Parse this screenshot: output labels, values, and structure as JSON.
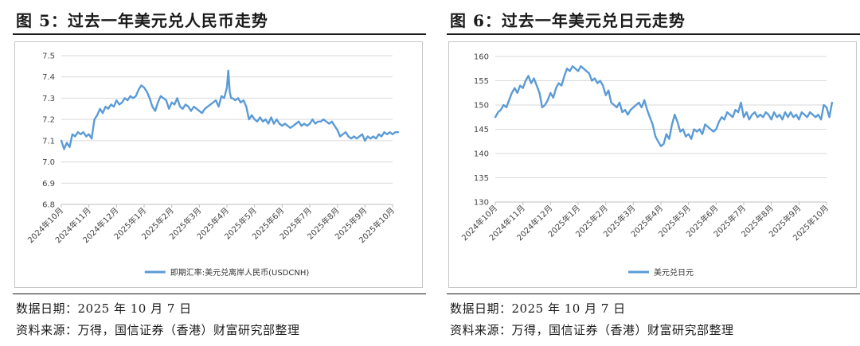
{
  "figures": [
    {
      "title": "图 5：过去一年美元兑人民币走势",
      "notes": [
        "数据日期：2025 年 10 月 7 日",
        "资料来源：万得，国信证券（香港）财富研究部整理"
      ]
    },
    {
      "title": "图 6：过去一年美元兑日元走势",
      "notes": [
        "数据日期：2025 年 10 月 7 日",
        "资料来源：万得，国信证券（香港）财富研究部整理"
      ]
    }
  ],
  "colors": {
    "line": "#5b9bd5",
    "grid": "#d9d9d9",
    "axis": "#bfbfbf"
  },
  "chart_data": [
    {
      "type": "line",
      "title": "",
      "xlabel": "",
      "ylabel": "",
      "ylim": [
        6.8,
        7.5
      ],
      "yticks": [
        "7.5",
        "7.4",
        "7.3",
        "7.2",
        "7.1",
        "7.0",
        "6.9",
        "6.8"
      ],
      "grid": true,
      "legend": "bottom-center",
      "xticks": [
        "2024年10月",
        "2024年11月",
        "2024年12月",
        "2025年1月",
        "2025年2月",
        "2025年3月",
        "2025年4月",
        "2025年5月",
        "2025年6月",
        "2025年7月",
        "2025年8月",
        "2025年9月",
        "2025年10月"
      ],
      "series": [
        {
          "name": "即期汇率:美元兑离岸人民币(USDCNH)",
          "x": [
            0,
            0.1,
            0.2,
            0.3,
            0.4,
            0.5,
            0.6,
            0.7,
            0.8,
            0.9,
            1.0,
            1.1,
            1.2,
            1.3,
            1.4,
            1.5,
            1.6,
            1.7,
            1.8,
            1.9,
            2.0,
            2.1,
            2.2,
            2.3,
            2.4,
            2.5,
            2.6,
            2.7,
            2.8,
            2.9,
            3.0,
            3.1,
            3.2,
            3.3,
            3.4,
            3.5,
            3.6,
            3.7,
            3.8,
            3.9,
            4.0,
            4.1,
            4.2,
            4.3,
            4.4,
            4.5,
            4.6,
            4.7,
            4.8,
            4.9,
            5.0,
            5.1,
            5.2,
            5.3,
            5.4,
            5.5,
            5.6,
            5.7,
            5.8,
            5.9,
            6.0,
            6.05,
            6.1,
            6.15,
            6.2,
            6.3,
            6.4,
            6.5,
            6.6,
            6.7,
            6.8,
            6.9,
            7.0,
            7.1,
            7.2,
            7.3,
            7.4,
            7.5,
            7.6,
            7.7,
            7.8,
            7.9,
            8.0,
            8.1,
            8.2,
            8.3,
            8.4,
            8.5,
            8.6,
            8.7,
            8.8,
            8.9,
            9.0,
            9.1,
            9.2,
            9.3,
            9.4,
            9.5,
            9.6,
            9.7,
            9.8,
            9.9,
            10.0,
            10.1,
            10.2,
            10.3,
            10.4,
            10.5,
            10.6,
            10.7,
            10.8,
            10.9,
            11.0,
            11.1,
            11.2,
            11.3,
            11.4,
            11.5,
            11.6,
            11.7,
            11.8,
            11.9,
            12.0,
            12.1,
            12.2
          ],
          "values": [
            7.1,
            7.06,
            7.09,
            7.07,
            7.13,
            7.12,
            7.14,
            7.13,
            7.14,
            7.12,
            7.13,
            7.11,
            7.2,
            7.22,
            7.25,
            7.23,
            7.26,
            7.25,
            7.27,
            7.26,
            7.29,
            7.27,
            7.28,
            7.3,
            7.29,
            7.31,
            7.3,
            7.31,
            7.34,
            7.36,
            7.35,
            7.33,
            7.3,
            7.26,
            7.24,
            7.28,
            7.31,
            7.3,
            7.29,
            7.25,
            7.28,
            7.27,
            7.3,
            7.26,
            7.25,
            7.27,
            7.26,
            7.24,
            7.26,
            7.25,
            7.24,
            7.23,
            7.25,
            7.26,
            7.27,
            7.28,
            7.29,
            7.26,
            7.31,
            7.3,
            7.35,
            7.43,
            7.33,
            7.3,
            7.3,
            7.29,
            7.3,
            7.28,
            7.29,
            7.26,
            7.2,
            7.22,
            7.2,
            7.19,
            7.21,
            7.19,
            7.2,
            7.18,
            7.21,
            7.18,
            7.2,
            7.18,
            7.17,
            7.18,
            7.17,
            7.16,
            7.17,
            7.18,
            7.19,
            7.17,
            7.18,
            7.17,
            7.18,
            7.2,
            7.18,
            7.19,
            7.19,
            7.2,
            7.19,
            7.18,
            7.19,
            7.17,
            7.15,
            7.12,
            7.13,
            7.14,
            7.12,
            7.11,
            7.12,
            7.11,
            7.12,
            7.13,
            7.1,
            7.12,
            7.11,
            7.12,
            7.11,
            7.13,
            7.12,
            7.14,
            7.13,
            7.14,
            7.13,
            7.14,
            7.14
          ]
        }
      ]
    },
    {
      "type": "line",
      "title": "",
      "xlabel": "",
      "ylabel": "",
      "ylim": [
        130,
        160
      ],
      "yticks": [
        "160",
        "155",
        "150",
        "145",
        "140",
        "135",
        "130"
      ],
      "grid": true,
      "legend": "bottom-center",
      "xticks": [
        "2024年10月",
        "2024年11月",
        "2024年12月",
        "2025年1月",
        "2025年2月",
        "2025年3月",
        "2025年4月",
        "2025年5月",
        "2025年6月",
        "2025年7月",
        "2025年8月",
        "2025年9月",
        "2025年10月"
      ],
      "series": [
        {
          "name": "美元兑日元",
          "x": [
            0,
            0.1,
            0.2,
            0.3,
            0.4,
            0.5,
            0.6,
            0.7,
            0.8,
            0.9,
            1.0,
            1.1,
            1.2,
            1.3,
            1.4,
            1.5,
            1.6,
            1.7,
            1.8,
            1.9,
            2.0,
            2.1,
            2.2,
            2.3,
            2.4,
            2.5,
            2.6,
            2.7,
            2.8,
            2.9,
            3.0,
            3.1,
            3.2,
            3.3,
            3.4,
            3.5,
            3.6,
            3.7,
            3.8,
            3.9,
            4.0,
            4.1,
            4.2,
            4.3,
            4.4,
            4.5,
            4.6,
            4.7,
            4.8,
            4.9,
            5.0,
            5.1,
            5.2,
            5.3,
            5.4,
            5.5,
            5.6,
            5.7,
            5.8,
            5.9,
            6.0,
            6.1,
            6.2,
            6.3,
            6.4,
            6.5,
            6.6,
            6.7,
            6.8,
            6.9,
            7.0,
            7.1,
            7.2,
            7.3,
            7.4,
            7.5,
            7.6,
            7.7,
            7.8,
            7.9,
            8.0,
            8.1,
            8.2,
            8.3,
            8.4,
            8.5,
            8.6,
            8.7,
            8.8,
            8.9,
            9.0,
            9.1,
            9.2,
            9.3,
            9.4,
            9.5,
            9.6,
            9.7,
            9.8,
            9.9,
            10.0,
            10.1,
            10.2,
            10.3,
            10.4,
            10.5,
            10.6,
            10.7,
            10.8,
            10.9,
            11.0,
            11.1,
            11.2,
            11.3,
            11.4,
            11.5,
            11.6,
            11.7,
            11.8,
            11.9,
            12.0,
            12.1,
            12.2
          ],
          "values": [
            147.5,
            148.5,
            149,
            150,
            149.5,
            151,
            152.5,
            153.5,
            152.5,
            154,
            153.5,
            155,
            156,
            154.5,
            155.5,
            154,
            152.5,
            149.5,
            150,
            151,
            152.5,
            151.5,
            153.5,
            154.5,
            154,
            156,
            157.5,
            157,
            158,
            157.5,
            157,
            158,
            157.5,
            157,
            156.5,
            155,
            155.5,
            154.5,
            155,
            154,
            152,
            153,
            150.5,
            150,
            149.5,
            150.5,
            148.5,
            149,
            148,
            149,
            149.5,
            150,
            150.5,
            149.5,
            151,
            149,
            147.5,
            146,
            143.5,
            142.5,
            141.5,
            142,
            144,
            143,
            146,
            148,
            146.5,
            144.5,
            145,
            143.5,
            144,
            143,
            145,
            144.5,
            145,
            144,
            146,
            145.5,
            145,
            144.5,
            145,
            146.5,
            147.5,
            147,
            148.5,
            148,
            147.5,
            149,
            148.5,
            150.5,
            147.5,
            148.5,
            147,
            148,
            148.5,
            147.5,
            148,
            147.5,
            148.5,
            148,
            147,
            148.5,
            147.5,
            148,
            147,
            148.5,
            147.5,
            148.5,
            147.5,
            148,
            147,
            148.5,
            148,
            147.5,
            148.5,
            148,
            147.5,
            148,
            147,
            150,
            149.5,
            147.5,
            150.5
          ]
        }
      ]
    }
  ]
}
